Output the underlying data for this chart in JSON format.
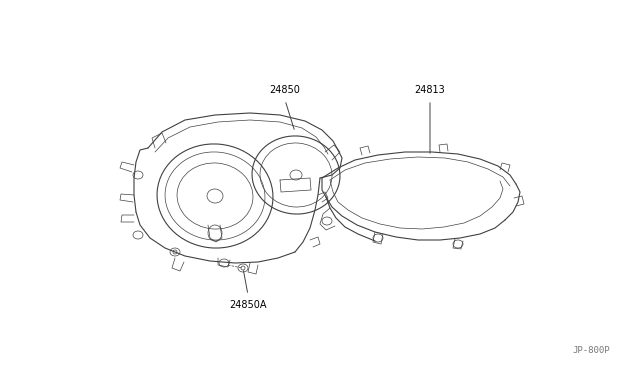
{
  "background_color": "#ffffff",
  "line_color": "#404040",
  "label_color": "#000000",
  "watermark": "JP-800P",
  "fig_width": 6.4,
  "fig_height": 3.72,
  "dpi": 100
}
